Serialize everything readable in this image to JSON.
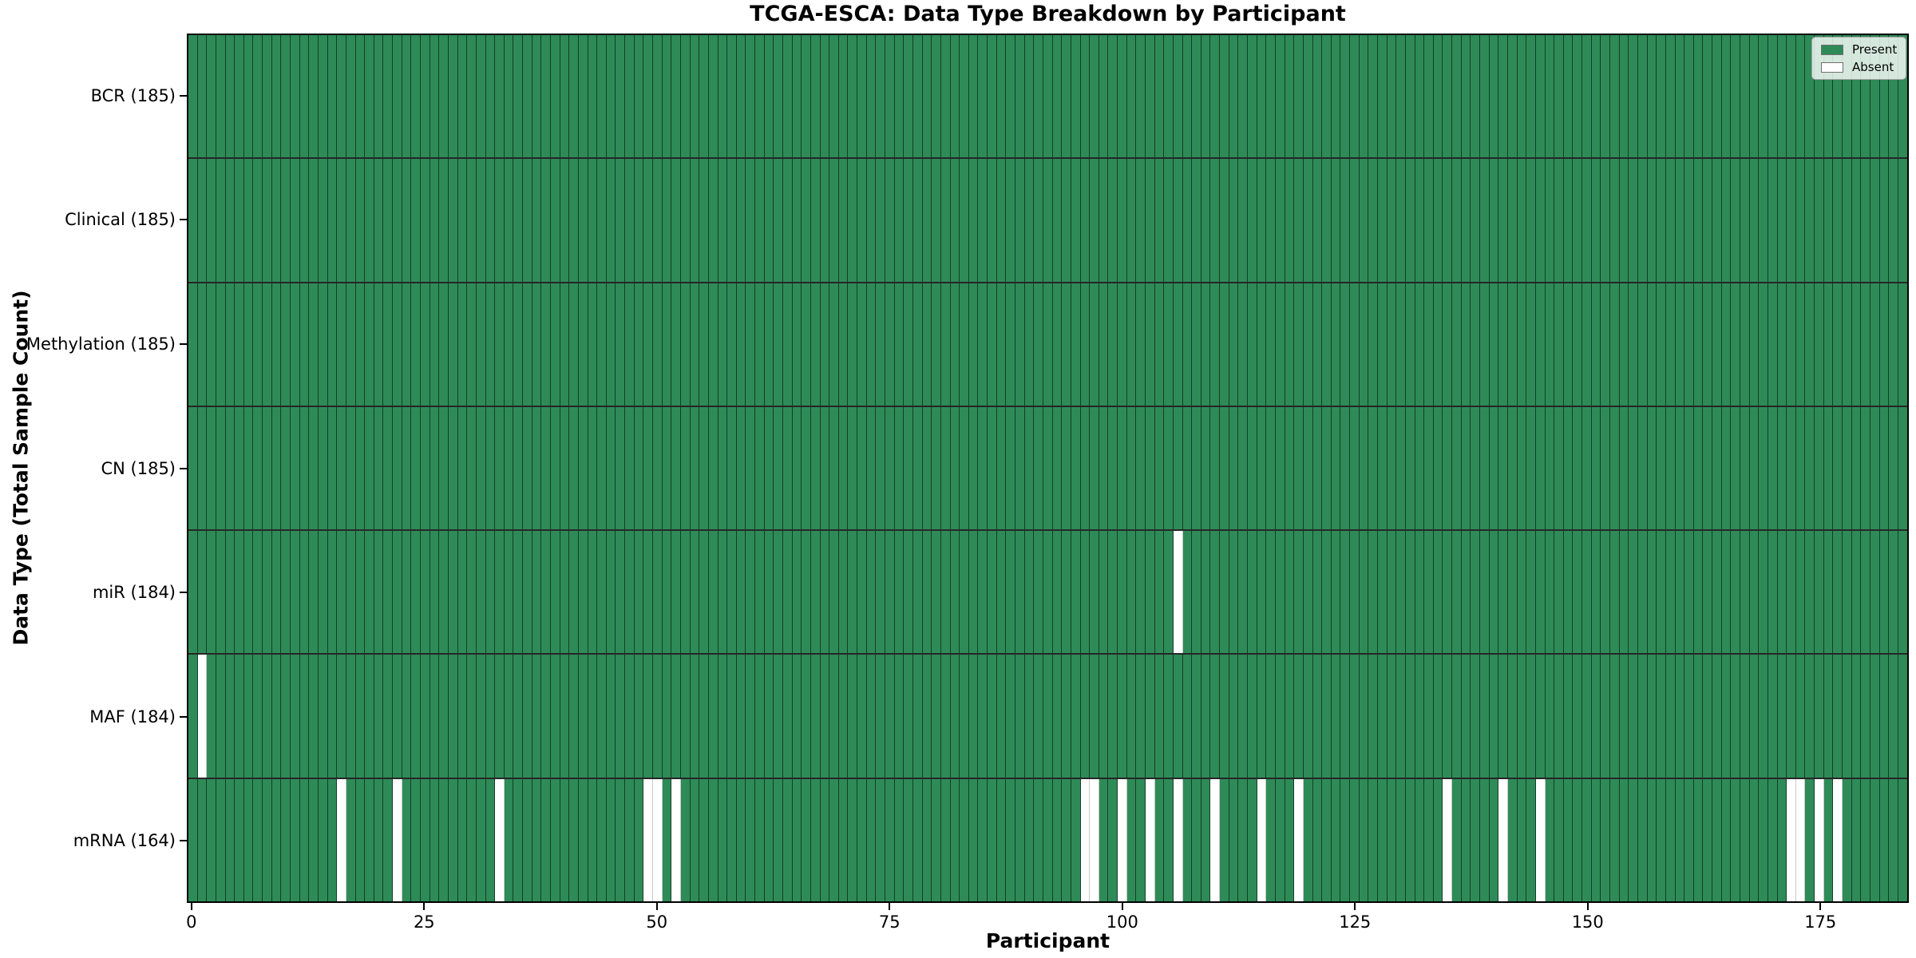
{
  "title": "TCGA-ESCA: Data Type Breakdown by Participant",
  "axes": {
    "xlabel": "Participant",
    "ylabel": "Data Type (Total Sample Count)"
  },
  "legend": {
    "items": [
      {
        "label": "Present",
        "color": "#2e8b57"
      },
      {
        "label": "Absent",
        "color": "#ffffff"
      }
    ],
    "position": "upper right"
  },
  "chart_data": {
    "type": "heatmap",
    "title": "TCGA-ESCA: Data Type Breakdown by Participant",
    "xlabel": "Participant",
    "ylabel": "Data Type (Total Sample Count)",
    "x_ticks": [
      0,
      25,
      50,
      75,
      100,
      125,
      150,
      175
    ],
    "x_range": [
      0,
      185
    ],
    "n_participants": 185,
    "present_color": "#2e8b57",
    "absent_color": "#ffffff",
    "cell_edge_color": "rgba(0,0,0,0.55)",
    "grid": "cell-edges",
    "legend_position": "upper right",
    "rows": [
      {
        "label": "BCR (185)",
        "data_type": "BCR",
        "total": 185,
        "absent_participants": []
      },
      {
        "label": "Clinical (185)",
        "data_type": "Clinical",
        "total": 185,
        "absent_participants": []
      },
      {
        "label": "Methylation (185)",
        "data_type": "Methylation",
        "total": 185,
        "absent_participants": []
      },
      {
        "label": "CN (185)",
        "data_type": "CN",
        "total": 185,
        "absent_participants": []
      },
      {
        "label": "miR (184)",
        "data_type": "miR",
        "total": 184,
        "absent_participants": [
          106
        ]
      },
      {
        "label": "MAF (184)",
        "data_type": "MAF",
        "total": 184,
        "absent_participants": [
          1
        ]
      },
      {
        "label": "mRNA (164)",
        "data_type": "mRNA",
        "total": 164,
        "absent_participants": [
          16,
          22,
          33,
          49,
          50,
          52,
          96,
          97,
          100,
          103,
          106,
          110,
          115,
          119,
          135,
          141,
          145,
          172,
          173,
          175,
          177
        ]
      }
    ]
  }
}
